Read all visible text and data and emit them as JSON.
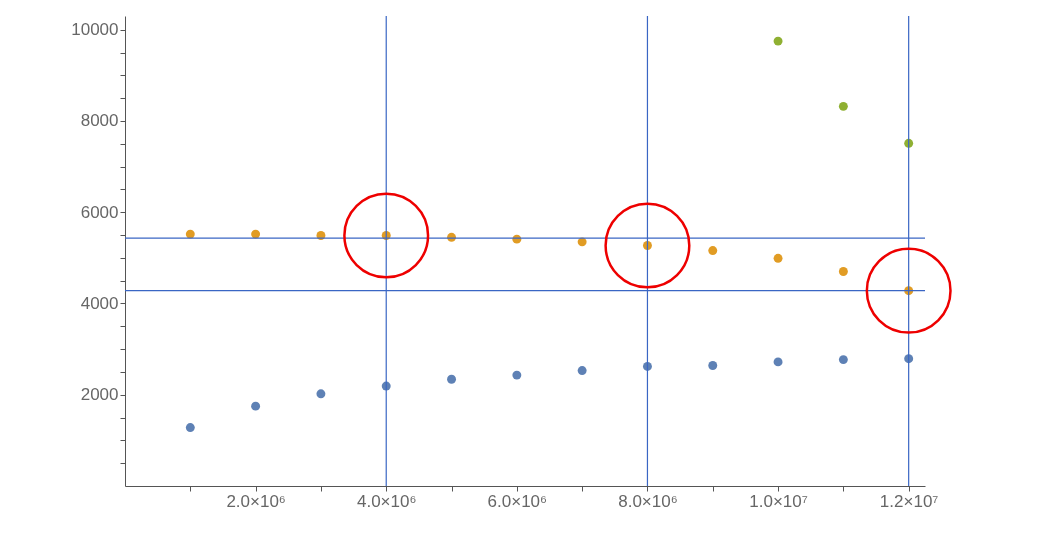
{
  "chart_data": {
    "type": "scatter",
    "marker": "circle",
    "grid": false,
    "xlim": [
      0,
      12250000
    ],
    "ylim": [
      0,
      10300
    ],
    "xticks": [
      {
        "value": 1000000,
        "label": null
      },
      {
        "value": 2000000,
        "label": "2.0×10⁶"
      },
      {
        "value": 3000000,
        "label": null
      },
      {
        "value": 4000000,
        "label": "4.0×10⁶"
      },
      {
        "value": 5000000,
        "label": null
      },
      {
        "value": 6000000,
        "label": "6.0×10⁶"
      },
      {
        "value": 7000000,
        "label": null
      },
      {
        "value": 8000000,
        "label": "8.0×10⁶"
      },
      {
        "value": 9000000,
        "label": null
      },
      {
        "value": 10000000,
        "label": "1.0×10⁷"
      },
      {
        "value": 11000000,
        "label": null
      },
      {
        "value": 12000000,
        "label": "1.2×10⁷"
      }
    ],
    "yticks": [
      {
        "value": 500,
        "label": null
      },
      {
        "value": 1000,
        "label": null
      },
      {
        "value": 1500,
        "label": null
      },
      2000,
      {
        "value": 2500,
        "label": null
      },
      {
        "value": 3000,
        "label": null
      },
      {
        "value": 3500,
        "label": null
      },
      4000,
      {
        "value": 4500,
        "label": null
      },
      {
        "value": 5000,
        "label": null
      },
      {
        "value": 5500,
        "label": null
      },
      6000,
      {
        "value": 6500,
        "label": null
      },
      {
        "value": 7000,
        "label": null
      },
      {
        "value": 7500,
        "label": null
      },
      8000,
      {
        "value": 8500,
        "label": null
      },
      {
        "value": 9000,
        "label": null
      },
      {
        "value": 9500,
        "label": null
      },
      10000
    ],
    "series": [
      {
        "color": "#5e81b5",
        "x": [
          1000000,
          2000000,
          3000000,
          4000000,
          5000000,
          6000000,
          7000000,
          8000000,
          9000000,
          10000000,
          11000000,
          12000000
        ],
        "values": [
          1280,
          1750,
          2020,
          2190,
          2340,
          2430,
          2530,
          2620,
          2640,
          2720,
          2770,
          2790
        ]
      },
      {
        "color": "#e19c24",
        "x": [
          1000000,
          2000000,
          3000000,
          4000000,
          5000000,
          6000000,
          7000000,
          8000000,
          9000000,
          10000000,
          11000000,
          12000000
        ],
        "values": [
          5520,
          5520,
          5490,
          5490,
          5450,
          5410,
          5350,
          5270,
          5160,
          4990,
          4700,
          4280
        ]
      },
      {
        "color": "#8fb032",
        "x": [
          10000000,
          11000000,
          12000000
        ],
        "values": [
          9750,
          8320,
          7510
        ]
      }
    ],
    "ref_lines": [
      {
        "axis": "y",
        "value": 5430,
        "color": "#3a66c4"
      },
      {
        "axis": "y",
        "value": 4280,
        "color": "#3a66c4"
      },
      {
        "axis": "x",
        "value": 4000000,
        "color": "#3a66c4"
      },
      {
        "axis": "x",
        "value": 8000000,
        "color": "#3a66c4"
      },
      {
        "axis": "x",
        "value": 12000000,
        "color": "#3a66c4"
      }
    ]
  }
}
